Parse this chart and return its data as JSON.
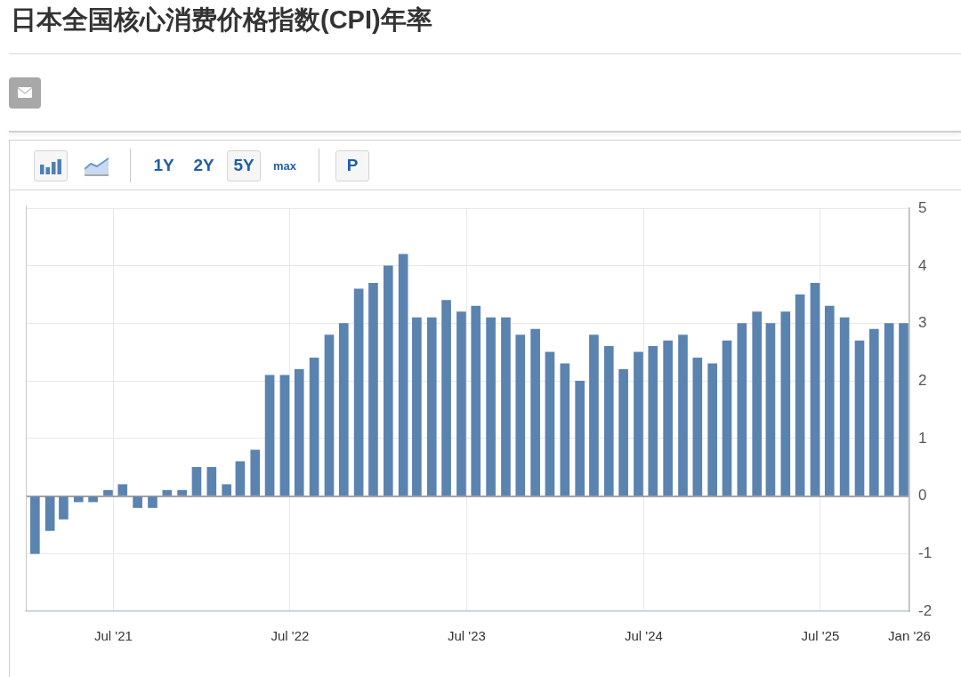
{
  "chart_data": {
    "type": "bar",
    "title": "日本全国核心消费价格指数(CPI)年率",
    "annotations": [
      "1Y",
      "2Y",
      "5Y",
      "max",
      "P"
    ],
    "x": [
      "2021-01-20",
      "2021-02-20",
      "2021-03-20",
      "2021-04-20",
      "2021-05-20",
      "2021-06-20",
      "2021-07-20",
      "2021-08-20",
      "2021-09-20",
      "2021-10-20",
      "2021-11-20",
      "2021-12-20",
      "2022-01-20",
      "2022-02-20",
      "2022-03-20",
      "2022-04-20",
      "2022-05-20",
      "2022-06-20",
      "2022-07-20",
      "2022-08-20",
      "2022-09-20",
      "2022-10-20",
      "2022-11-20",
      "2022-12-20",
      "2023-01-20",
      "2023-02-20",
      "2023-03-20",
      "2023-04-20",
      "2023-05-20",
      "2023-06-20",
      "2023-07-20",
      "2023-08-20",
      "2023-09-20",
      "2023-10-20",
      "2023-11-20",
      "2023-12-20",
      "2024-01-20",
      "2024-02-20",
      "2024-03-20",
      "2024-04-20",
      "2024-05-20",
      "2024-06-20",
      "2024-07-20",
      "2024-08-20",
      "2024-09-20",
      "2024-10-20",
      "2024-11-20",
      "2024-12-20",
      "2025-01-20",
      "2025-02-20",
      "2025-03-20",
      "2025-04-20",
      "2025-05-20",
      "2025-06-20",
      "2025-07-20",
      "2025-08-20",
      "2025-09-20",
      "2025-10-20",
      "2025-11-20",
      "2025-12-20"
    ],
    "values": [
      -1.0,
      -0.6,
      -0.4,
      -0.1,
      -0.1,
      0.1,
      0.2,
      -0.2,
      -0.2,
      0.1,
      0.1,
      0.5,
      0.5,
      0.2,
      0.6,
      0.8,
      2.1,
      2.1,
      2.2,
      2.4,
      2.8,
      3.0,
      3.6,
      3.7,
      4.0,
      4.2,
      3.1,
      3.1,
      3.4,
      3.2,
      3.3,
      3.1,
      3.1,
      2.8,
      2.9,
      2.5,
      2.3,
      2.0,
      2.8,
      2.6,
      2.2,
      2.5,
      2.6,
      2.7,
      2.8,
      2.4,
      2.3,
      2.7,
      3.0,
      3.2,
      3.0,
      3.2,
      3.5,
      3.7,
      3.3,
      3.1,
      2.7,
      2.9,
      3.0,
      3.0
    ],
    "color": "#5b83b0",
    "xlim": [
      "2021-01-01",
      "2026-01-01"
    ],
    "xticks": [
      {
        "value": "2021-07-01",
        "label": "Jul '21"
      },
      {
        "value": "2022-07-01",
        "label": "Jul '22"
      },
      {
        "value": "2023-07-01",
        "label": "Jul '23"
      },
      {
        "value": "2024-07-01",
        "label": "Jul '24"
      },
      {
        "value": "2025-07-01",
        "label": "Jul '25"
      },
      {
        "value": "2026-01-01",
        "label": "Jan '26"
      }
    ],
    "ylim": [
      -2,
      5
    ],
    "yticks": [
      -2,
      -1,
      0,
      1,
      2,
      3,
      4,
      5
    ],
    "grid": true
  }
}
